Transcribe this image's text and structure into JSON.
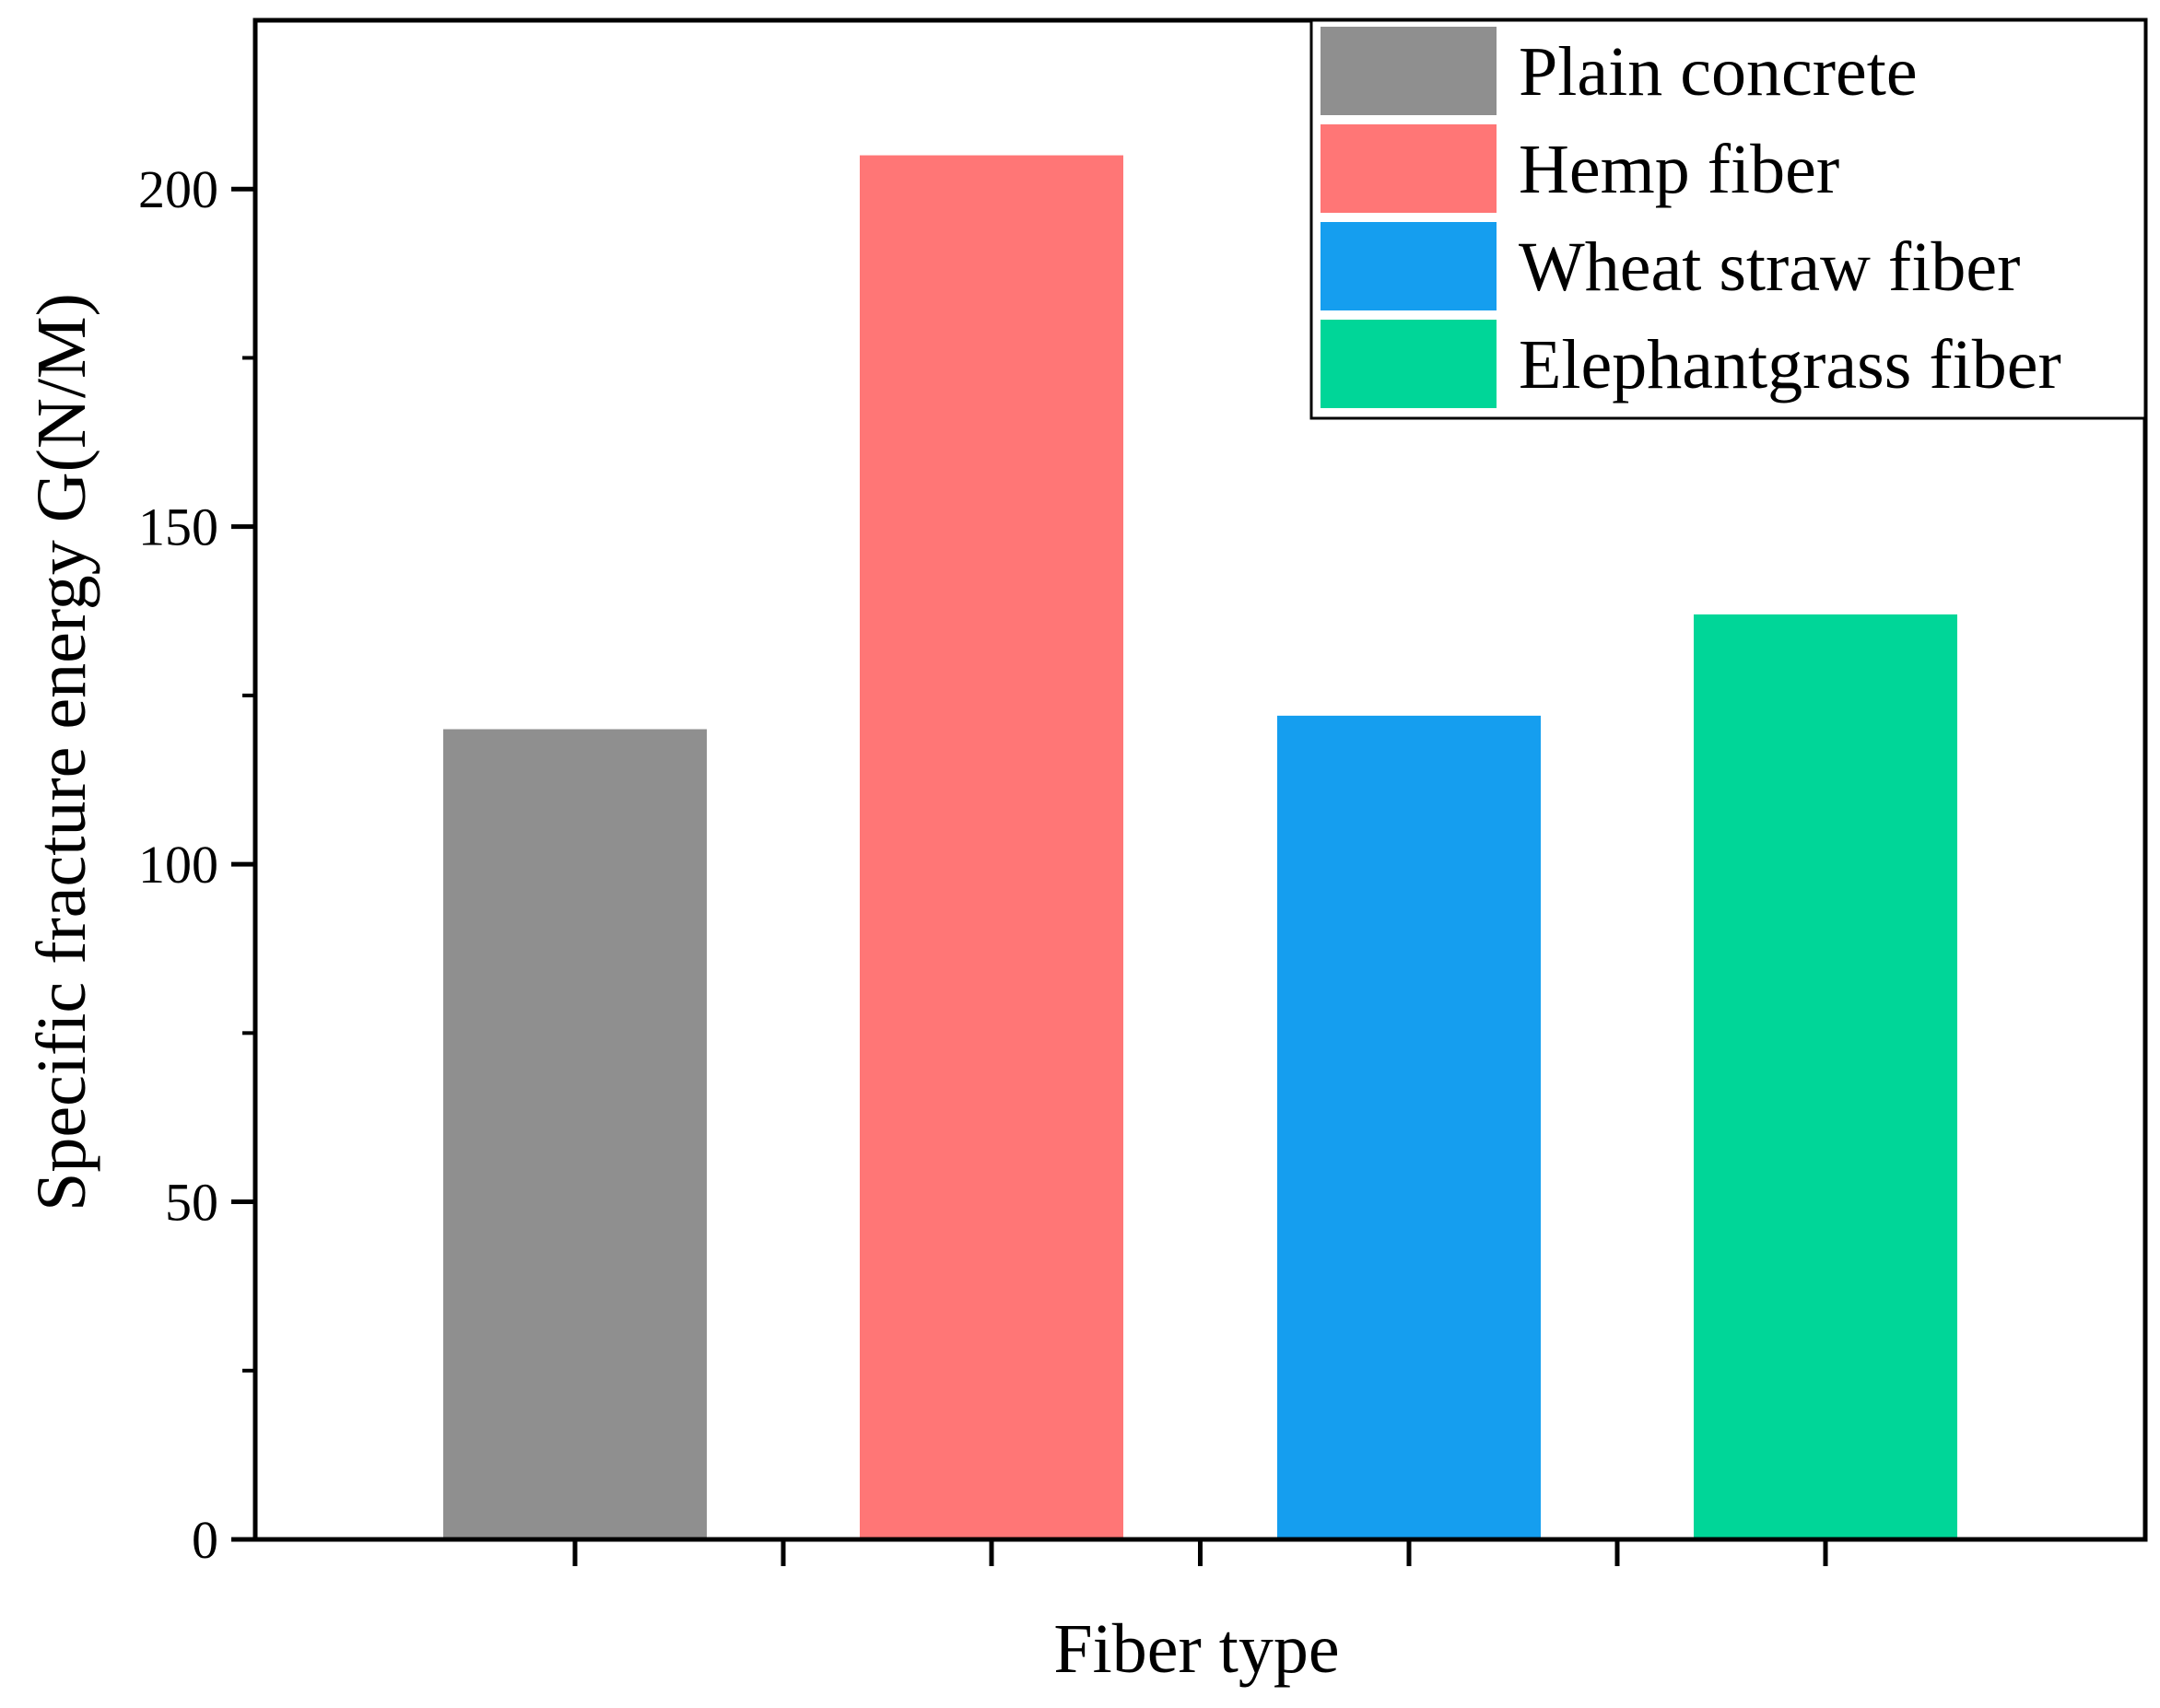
{
  "chart_data": {
    "type": "bar",
    "categories": [
      "Plain concrete",
      "Hemp fiber",
      "Wheat straw fiber",
      "Elephantgrass fiber"
    ],
    "series": [
      {
        "name": "Plain concrete",
        "value": 120,
        "color": "#8f8f8f"
      },
      {
        "name": "Hemp fiber",
        "value": 205,
        "color": "#ff7676"
      },
      {
        "name": "Wheat straw fiber",
        "value": 122,
        "color": "#159eef"
      },
      {
        "name": "Elephantgrass fiber",
        "value": 137,
        "color": "#00d698"
      }
    ],
    "xlabel": "Fiber type",
    "ylabel": "Specific fracture energy G(N/M)",
    "ylim": [
      0,
      225
    ],
    "yticks": [
      0,
      50,
      100,
      150,
      200
    ],
    "grid": false,
    "legend_position": "top-right"
  }
}
